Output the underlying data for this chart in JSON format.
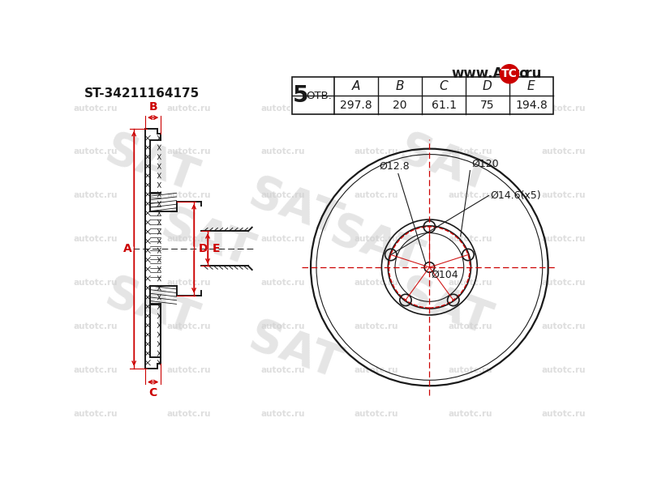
{
  "bg_color": "#ffffff",
  "line_color": "#1a1a1a",
  "red_color": "#cc0000",
  "watermark_color": "#d0d0d0",
  "part_number": "ST-34211164175",
  "table": {
    "holes": "5",
    "holes_label": "ОТВ.",
    "A": "297.8",
    "B": "20",
    "C": "61.1",
    "D": "75",
    "E": "194.8"
  },
  "dimensions": {
    "bolt_hole": "Ø14.6(x5)",
    "bolt_circle": "Ø104",
    "center_hole": "Ø12.8",
    "hub_ring": "Ø120"
  }
}
